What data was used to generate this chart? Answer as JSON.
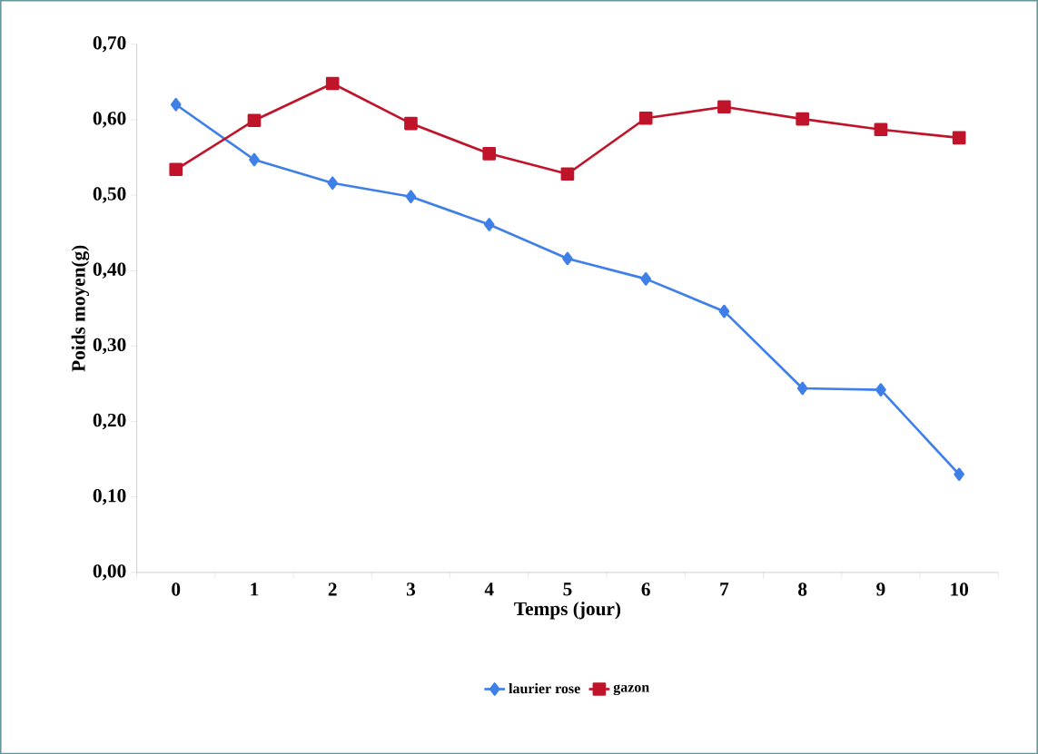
{
  "chart_data": {
    "type": "line",
    "xlabel": "Temps (jour)",
    "ylabel": "Poids moyen(g)",
    "categories": [
      "0",
      "1",
      "2",
      "3",
      "4",
      "5",
      "6",
      "7",
      "8",
      "9",
      "10"
    ],
    "series": [
      {
        "name": "laurier rose",
        "color": "#3f7fe8",
        "marker": "diamond",
        "values": [
          0.62,
          0.547,
          0.516,
          0.498,
          0.461,
          0.416,
          0.389,
          0.346,
          0.244,
          0.242,
          0.13
        ]
      },
      {
        "name": "gazon",
        "color": "#c0142a",
        "marker": "square",
        "values": [
          0.534,
          0.599,
          0.648,
          0.595,
          0.555,
          0.528,
          0.602,
          0.617,
          0.601,
          0.587,
          0.576
        ]
      }
    ],
    "ylim": [
      0,
      0.7
    ],
    "yticks": [
      {
        "value": 0,
        "label": "0,00"
      },
      {
        "value": 0.1,
        "label": "0,10"
      },
      {
        "value": 0.2,
        "label": "0,20"
      },
      {
        "value": 0.3,
        "label": "0,30"
      },
      {
        "value": 0.4,
        "label": "0,40"
      },
      {
        "value": 0.5,
        "label": "0,50"
      },
      {
        "value": 0.6,
        "label": "0,60"
      },
      {
        "value": 0.7,
        "label": "0,70"
      }
    ],
    "grid": false,
    "legend": "bottom",
    "line_style": "solid"
  }
}
